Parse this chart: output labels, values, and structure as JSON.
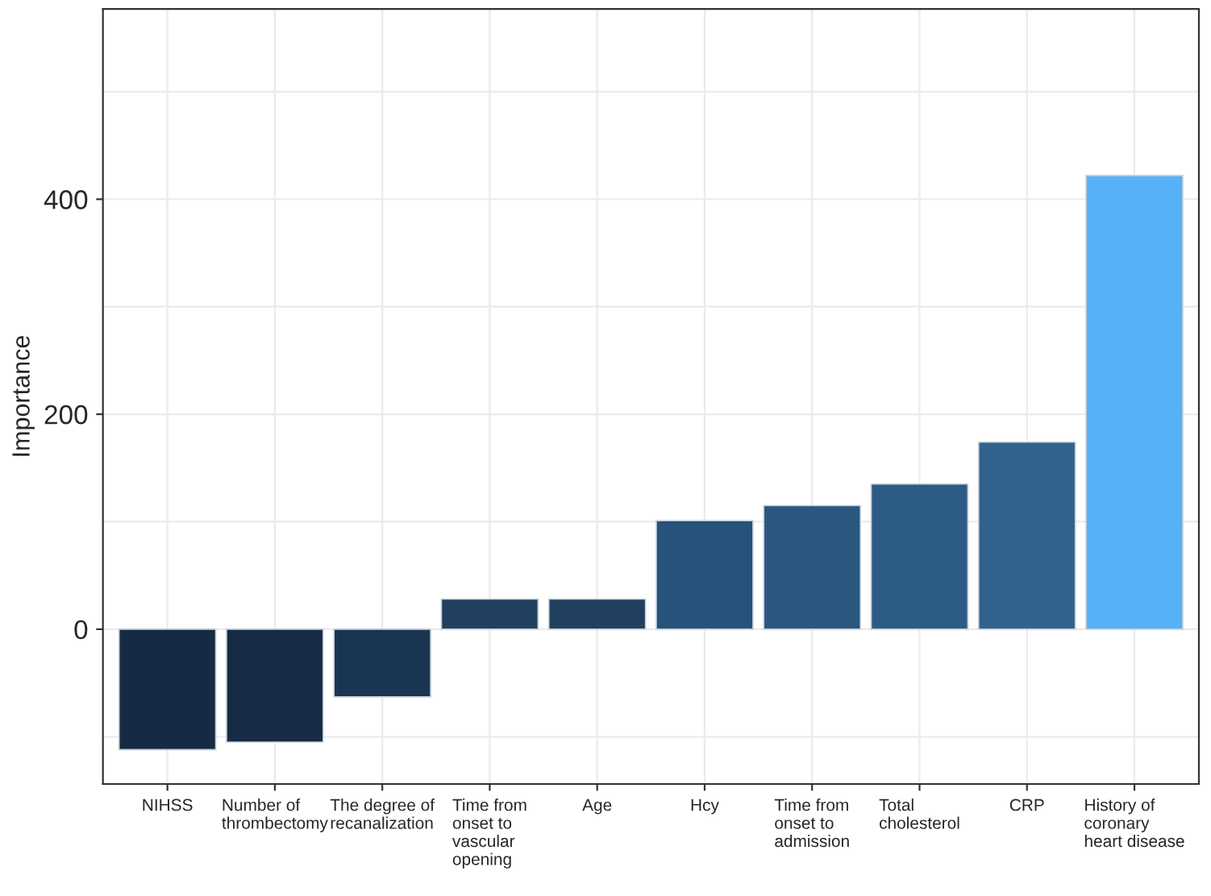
{
  "chart_data": {
    "type": "bar",
    "categories": [
      "NIHSS",
      "Number of thrombectomy",
      "The degree of recanalization",
      "Time from onset to vascular opening",
      "Age",
      "Hcy",
      "Time from onset to admission",
      "Total cholesterol",
      "CRP",
      "History of coronary heart disease"
    ],
    "values": [
      -112,
      -105,
      -63,
      28,
      28,
      101,
      115,
      135,
      174,
      422
    ],
    "colors": [
      "#162a43",
      "#172b45",
      "#1a3552",
      "#21405f",
      "#21405f",
      "#27527a",
      "#29577f",
      "#2c5c84",
      "#30628c",
      "#56b1f7"
    ],
    "ylabel": "Importance",
    "ylim": [
      -144,
      577
    ],
    "yticks": [
      {
        "value": -100,
        "label": null
      },
      0,
      {
        "value": 100,
        "label": null
      },
      200,
      {
        "value": 300,
        "label": null
      },
      400,
      {
        "value": 500,
        "label": null
      }
    ],
    "grid": true
  }
}
